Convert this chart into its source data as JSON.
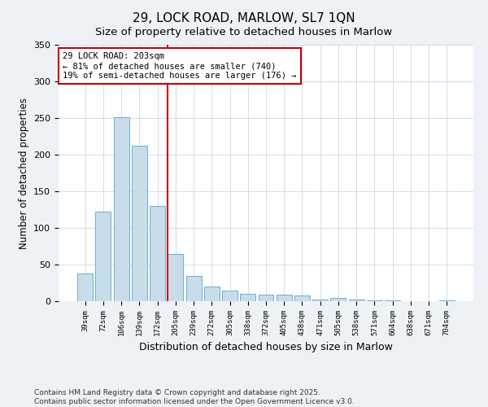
{
  "title": "29, LOCK ROAD, MARLOW, SL7 1QN",
  "subtitle": "Size of property relative to detached houses in Marlow",
  "xlabel": "Distribution of detached houses by size in Marlow",
  "ylabel": "Number of detached properties",
  "categories": [
    "39sqm",
    "72sqm",
    "106sqm",
    "139sqm",
    "172sqm",
    "205sqm",
    "239sqm",
    "272sqm",
    "305sqm",
    "338sqm",
    "372sqm",
    "405sqm",
    "438sqm",
    "471sqm",
    "505sqm",
    "538sqm",
    "571sqm",
    "604sqm",
    "638sqm",
    "671sqm",
    "704sqm"
  ],
  "values": [
    38,
    122,
    251,
    212,
    130,
    65,
    35,
    20,
    15,
    10,
    9,
    9,
    8,
    2,
    4,
    2,
    1,
    1,
    0,
    0,
    1
  ],
  "bar_color": "#c9dcea",
  "bar_edge_color": "#6aaed6",
  "vline_color": "#cc0000",
  "vline_index": 5,
  "annotation_text": "29 LOCK ROAD: 203sqm\n← 81% of detached houses are smaller (740)\n19% of semi-detached houses are larger (176) →",
  "annotation_box_color": "#cc0000",
  "ylim": [
    0,
    350
  ],
  "yticks": [
    0,
    50,
    100,
    150,
    200,
    250,
    300,
    350
  ],
  "footer": "Contains HM Land Registry data © Crown copyright and database right 2025.\nContains public sector information licensed under the Open Government Licence v3.0.",
  "background_color": "#eef2f7",
  "plot_bg_color": "#ffffff",
  "grid_color": "#c8d8e8"
}
